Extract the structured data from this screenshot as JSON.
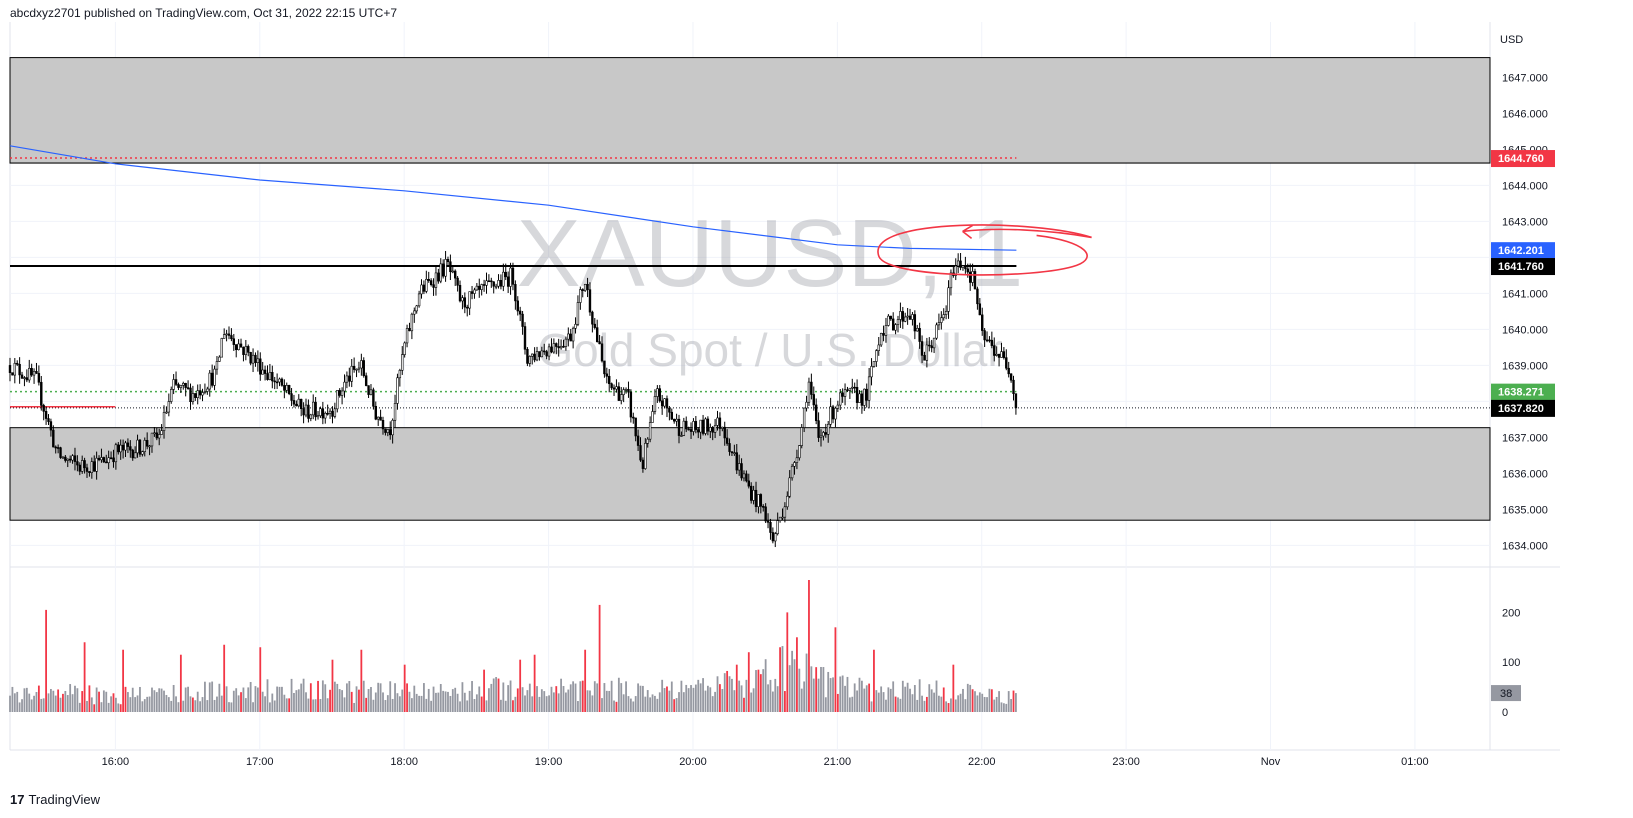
{
  "header": {
    "published_text": "abcdxyz2701 published on TradingView.com, Oct 31, 2022 22:15 UTC+7"
  },
  "footer": {
    "logo_glyph": "17",
    "brand": "TradingView"
  },
  "chart_data": {
    "type": "candlestick",
    "symbol_watermark": "XAUUSD, 1",
    "description_watermark": "Gold Spot / U.S. Dollar",
    "currency_label": "USD",
    "y_range": [
      1633.4,
      1648.4
    ],
    "y_ticks": [
      "1647.000",
      "1646.000",
      "1645.000",
      "1644.000",
      "1643.000",
      "1642.000",
      "1641.000",
      "1640.000",
      "1639.000",
      "1638.000",
      "1637.000",
      "1636.000",
      "1635.000",
      "1634.000"
    ],
    "y_tick_values": [
      1647,
      1646,
      1645,
      1644,
      1643,
      1642,
      1641,
      1640,
      1639,
      1638,
      1637,
      1636,
      1635,
      1634
    ],
    "x_ticks": [
      "16:00",
      "17:00",
      "18:00",
      "19:00",
      "20:00",
      "21:00",
      "22:00",
      "23:00",
      "Nov",
      "01:00"
    ],
    "x_tick_hours": [
      16,
      17,
      18,
      19,
      20,
      21,
      22,
      23,
      24,
      25
    ],
    "x_range_hours": [
      15.27,
      25.52
    ],
    "last_bar_hour": 22.24,
    "price_labels": [
      {
        "value": 1644.76,
        "text": "1644.760",
        "color": "#f23645"
      },
      {
        "value": 1642.201,
        "text": "1642.201",
        "color": "#2962ff"
      },
      {
        "value": 1641.76,
        "text": "1641.760",
        "color": "#000000"
      },
      {
        "value": 1638.271,
        "text": "1638.271",
        "color": "#4caf50"
      },
      {
        "value": 1637.82,
        "text": "1637.820",
        "color": "#000000"
      }
    ],
    "zones": [
      {
        "top": 1647.55,
        "bottom": 1644.62
      },
      {
        "top": 1637.27,
        "bottom": 1634.7
      }
    ],
    "resistance_line": 1641.76,
    "red_dotted_level": 1644.76,
    "green_dotted_level": 1638.271,
    "last_price": 1637.82,
    "short_red_line": {
      "value": 1637.85,
      "from_hour": 15.27,
      "to_hour": 16.0
    },
    "moving_average": [
      {
        "h": 15.27,
        "v": 1645.1
      },
      {
        "h": 16.0,
        "v": 1644.6
      },
      {
        "h": 17.0,
        "v": 1644.15
      },
      {
        "h": 18.0,
        "v": 1643.85
      },
      {
        "h": 19.0,
        "v": 1643.45
      },
      {
        "h": 20.0,
        "v": 1642.85
      },
      {
        "h": 21.0,
        "v": 1642.35
      },
      {
        "h": 21.5,
        "v": 1642.25
      },
      {
        "h": 22.24,
        "v": 1642.2
      }
    ],
    "price_path": [
      {
        "h": 15.27,
        "v": 1639.0
      },
      {
        "h": 15.45,
        "v": 1638.6
      },
      {
        "h": 15.6,
        "v": 1636.5
      },
      {
        "h": 15.75,
        "v": 1636.2
      },
      {
        "h": 15.9,
        "v": 1636.3
      },
      {
        "h": 16.0,
        "v": 1636.6
      },
      {
        "h": 16.15,
        "v": 1636.7
      },
      {
        "h": 16.3,
        "v": 1637.0
      },
      {
        "h": 16.4,
        "v": 1638.4
      },
      {
        "h": 16.55,
        "v": 1638.2
      },
      {
        "h": 16.7,
        "v": 1638.8
      },
      {
        "h": 16.75,
        "v": 1640.0
      },
      {
        "h": 16.9,
        "v": 1639.4
      },
      {
        "h": 17.1,
        "v": 1638.6
      },
      {
        "h": 17.3,
        "v": 1637.7
      },
      {
        "h": 17.5,
        "v": 1637.8
      },
      {
        "h": 17.6,
        "v": 1638.6
      },
      {
        "h": 17.7,
        "v": 1639.0
      },
      {
        "h": 17.8,
        "v": 1637.7
      },
      {
        "h": 17.9,
        "v": 1637.2
      },
      {
        "h": 18.0,
        "v": 1639.5
      },
      {
        "h": 18.1,
        "v": 1641.0
      },
      {
        "h": 18.3,
        "v": 1641.8
      },
      {
        "h": 18.4,
        "v": 1640.7
      },
      {
        "h": 18.6,
        "v": 1641.2
      },
      {
        "h": 18.75,
        "v": 1641.5
      },
      {
        "h": 18.85,
        "v": 1639.2
      },
      {
        "h": 19.0,
        "v": 1639.5
      },
      {
        "h": 19.15,
        "v": 1639.8
      },
      {
        "h": 19.25,
        "v": 1641.4
      },
      {
        "h": 19.4,
        "v": 1638.5
      },
      {
        "h": 19.55,
        "v": 1638.1
      },
      {
        "h": 19.65,
        "v": 1636.2
      },
      {
        "h": 19.75,
        "v": 1638.2
      },
      {
        "h": 19.9,
        "v": 1637.3
      },
      {
        "h": 20.0,
        "v": 1637.2
      },
      {
        "h": 20.2,
        "v": 1637.4
      },
      {
        "h": 20.3,
        "v": 1636.3
      },
      {
        "h": 20.4,
        "v": 1635.5
      },
      {
        "h": 20.5,
        "v": 1634.9
      },
      {
        "h": 20.55,
        "v": 1634.1
      },
      {
        "h": 20.65,
        "v": 1635.4
      },
      {
        "h": 20.75,
        "v": 1637.2
      },
      {
        "h": 20.8,
        "v": 1638.6
      },
      {
        "h": 20.87,
        "v": 1636.9
      },
      {
        "h": 21.0,
        "v": 1638.0
      },
      {
        "h": 21.1,
        "v": 1638.2
      },
      {
        "h": 21.2,
        "v": 1638.1
      },
      {
        "h": 21.3,
        "v": 1640.0
      },
      {
        "h": 21.5,
        "v": 1640.5
      },
      {
        "h": 21.6,
        "v": 1639.2
      },
      {
        "h": 21.75,
        "v": 1640.5
      },
      {
        "h": 21.8,
        "v": 1641.7
      },
      {
        "h": 21.87,
        "v": 1641.9
      },
      {
        "h": 21.95,
        "v": 1641.3
      },
      {
        "h": 22.0,
        "v": 1639.8
      },
      {
        "h": 22.1,
        "v": 1639.4
      },
      {
        "h": 22.2,
        "v": 1638.9
      },
      {
        "h": 22.24,
        "v": 1637.82
      }
    ],
    "volume": {
      "y_ticks": [
        "200",
        "100",
        "0"
      ],
      "y_tick_values": [
        200,
        100,
        0
      ],
      "y_max": 265,
      "last_value": "38",
      "level_path": [
        {
          "h": 15.27,
          "v": 50
        },
        {
          "h": 16.0,
          "v": 42
        },
        {
          "h": 17.0,
          "v": 55
        },
        {
          "h": 18.0,
          "v": 50
        },
        {
          "h": 19.0,
          "v": 60
        },
        {
          "h": 19.5,
          "v": 55
        },
        {
          "h": 20.0,
          "v": 50
        },
        {
          "h": 20.5,
          "v": 90
        },
        {
          "h": 20.7,
          "v": 120
        },
        {
          "h": 21.0,
          "v": 60
        },
        {
          "h": 21.5,
          "v": 55
        },
        {
          "h": 22.24,
          "v": 38
        }
      ],
      "spikes": [
        {
          "h": 15.52,
          "v": 205
        },
        {
          "h": 15.78,
          "v": 140
        },
        {
          "h": 16.05,
          "v": 125
        },
        {
          "h": 16.45,
          "v": 115
        },
        {
          "h": 16.75,
          "v": 135
        },
        {
          "h": 17.0,
          "v": 130
        },
        {
          "h": 17.5,
          "v": 110
        },
        {
          "h": 17.5,
          "v": 105
        },
        {
          "h": 17.7,
          "v": 125
        },
        {
          "h": 18.0,
          "v": 95
        },
        {
          "h": 18.55,
          "v": 85
        },
        {
          "h": 18.8,
          "v": 105
        },
        {
          "h": 18.9,
          "v": 115
        },
        {
          "h": 19.25,
          "v": 125
        },
        {
          "h": 19.35,
          "v": 215
        },
        {
          "h": 20.3,
          "v": 95
        },
        {
          "h": 20.38,
          "v": 120
        },
        {
          "h": 20.45,
          "v": 85
        },
        {
          "h": 20.6,
          "v": 130
        },
        {
          "h": 20.65,
          "v": 200
        },
        {
          "h": 20.72,
          "v": 150
        },
        {
          "h": 20.8,
          "v": 265
        },
        {
          "h": 20.85,
          "v": 90
        },
        {
          "h": 20.98,
          "v": 170
        },
        {
          "h": 21.25,
          "v": 125
        },
        {
          "h": 21.8,
          "v": 95
        }
      ]
    }
  }
}
